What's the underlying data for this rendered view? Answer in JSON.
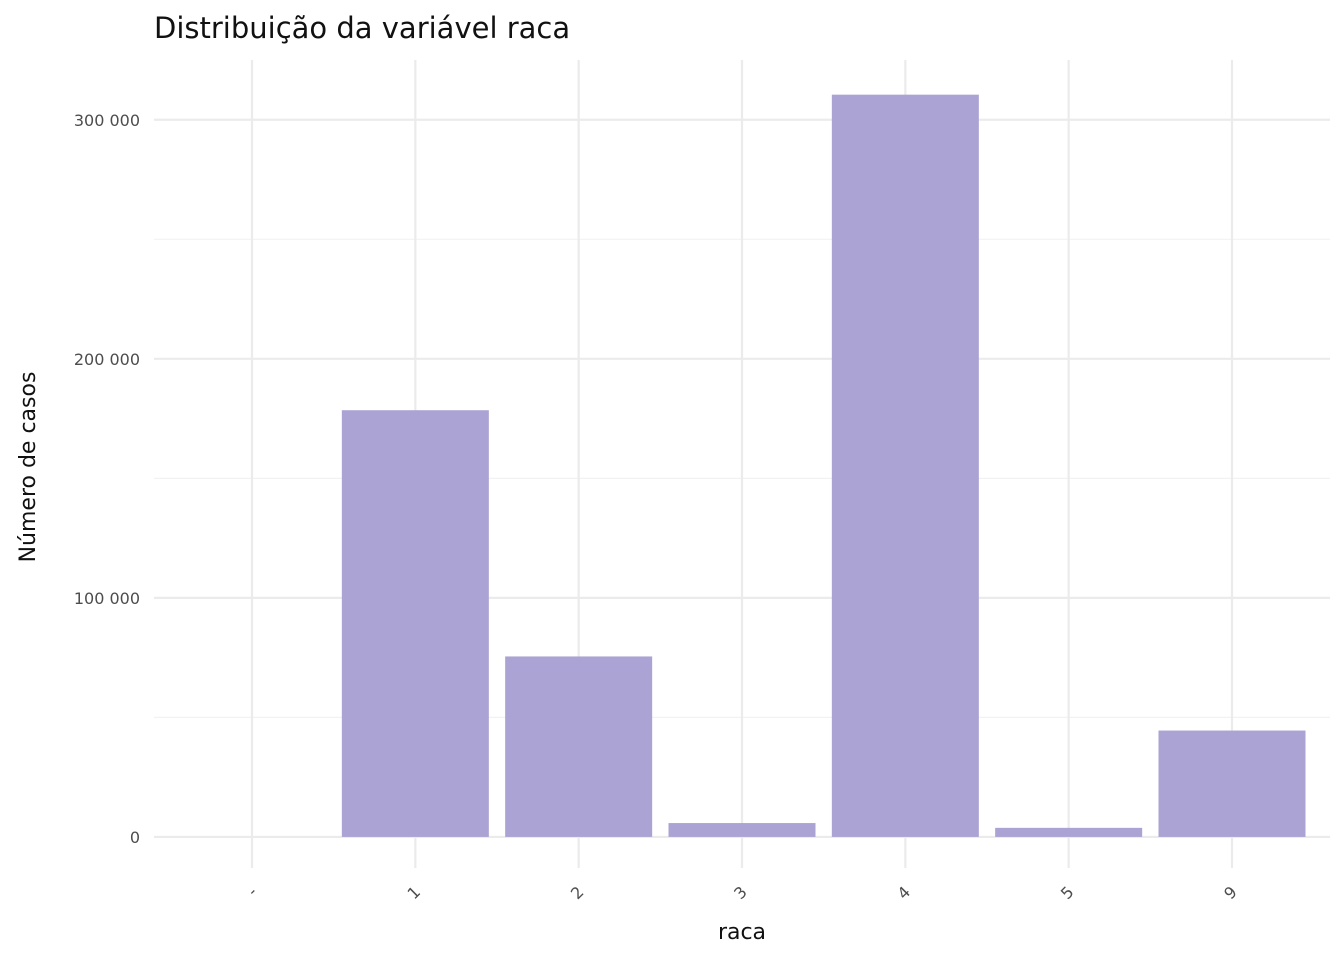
{
  "chart_data": {
    "type": "bar",
    "title": "Distribuição da variável  raca",
    "xlabel": "raca",
    "ylabel": "Número de casos",
    "categories": [
      "-",
      "1",
      "2",
      "3",
      "4",
      "5",
      "9"
    ],
    "values": [
      0,
      178500,
      75500,
      5800,
      310500,
      3800,
      44500
    ],
    "ylim": [
      -13000,
      325000
    ],
    "y_ticks": [
      0,
      100000,
      200000,
      300000
    ],
    "y_tick_labels": [
      "0",
      "100 000",
      "200 000",
      "300 000"
    ],
    "y_minor_ticks": [
      50000,
      150000,
      250000
    ],
    "x_tick_rotation": 45,
    "grid": true,
    "legend": false,
    "bar_color": "#aba3d3",
    "grid_color": "#ebebeb"
  }
}
